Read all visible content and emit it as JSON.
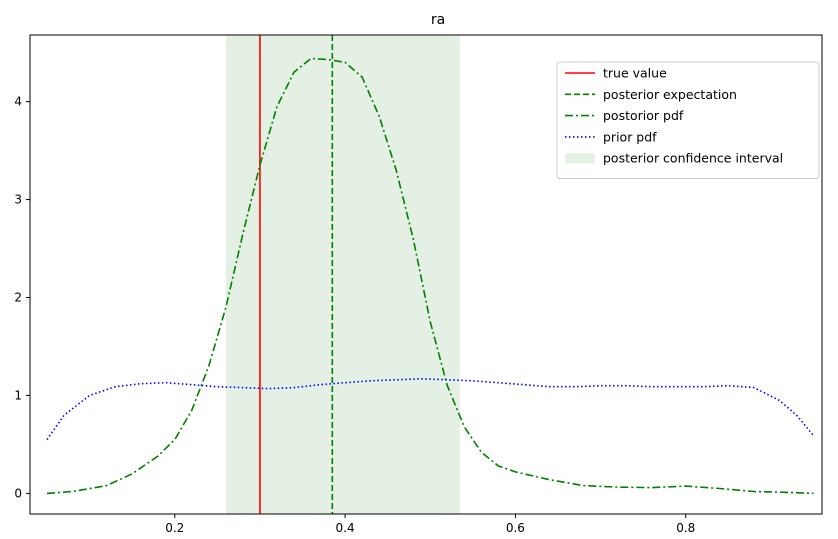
{
  "chart_data": {
    "type": "line",
    "title": "ra",
    "xlabel": "",
    "ylabel": "",
    "xlim": [
      0.03,
      0.96
    ],
    "ylim": [
      -0.21,
      4.68
    ],
    "x_ticks": [
      0.2,
      0.4,
      0.6,
      0.8
    ],
    "y_ticks": [
      0,
      1,
      2,
      3,
      4
    ],
    "x_tick_labels": [
      "0.2",
      "0.4",
      "0.6",
      "0.8"
    ],
    "y_tick_labels": [
      "0",
      "1",
      "2",
      "3",
      "4"
    ],
    "grid": false,
    "legend_position": "upper-right",
    "true_value": 0.3,
    "posterior_expectation": 0.385,
    "confidence_interval": [
      0.26,
      0.535
    ],
    "series": [
      {
        "name": "true value",
        "kind": "vline",
        "color": "#ff0000",
        "style": "solid",
        "x": 0.3
      },
      {
        "name": "posterior expectation",
        "kind": "vline",
        "color": "#008000",
        "style": "dashed",
        "x": 0.385
      },
      {
        "name": "postorior pdf",
        "kind": "line",
        "color": "#008000",
        "style": "dashdot",
        "x": [
          0.05,
          0.08,
          0.12,
          0.15,
          0.18,
          0.2,
          0.22,
          0.24,
          0.26,
          0.28,
          0.3,
          0.32,
          0.34,
          0.36,
          0.38,
          0.4,
          0.42,
          0.44,
          0.46,
          0.48,
          0.5,
          0.52,
          0.54,
          0.56,
          0.58,
          0.6,
          0.64,
          0.68,
          0.72,
          0.76,
          0.8,
          0.84,
          0.88,
          0.92,
          0.95
        ],
        "y": [
          0.0,
          0.02,
          0.08,
          0.2,
          0.38,
          0.55,
          0.85,
          1.3,
          1.9,
          2.65,
          3.35,
          3.95,
          4.3,
          4.44,
          4.43,
          4.4,
          4.25,
          3.85,
          3.3,
          2.6,
          1.75,
          1.1,
          0.68,
          0.42,
          0.28,
          0.22,
          0.14,
          0.08,
          0.065,
          0.06,
          0.075,
          0.05,
          0.02,
          0.01,
          0.0
        ]
      },
      {
        "name": "prior pdf",
        "kind": "line",
        "color": "#0000ff",
        "style": "dotted",
        "x": [
          0.05,
          0.07,
          0.1,
          0.13,
          0.16,
          0.19,
          0.22,
          0.25,
          0.28,
          0.31,
          0.34,
          0.37,
          0.4,
          0.43,
          0.46,
          0.49,
          0.52,
          0.55,
          0.58,
          0.61,
          0.64,
          0.67,
          0.7,
          0.73,
          0.76,
          0.79,
          0.82,
          0.85,
          0.88,
          0.91,
          0.93,
          0.95
        ],
        "y": [
          0.55,
          0.8,
          1.0,
          1.09,
          1.12,
          1.13,
          1.11,
          1.09,
          1.08,
          1.07,
          1.08,
          1.11,
          1.13,
          1.15,
          1.16,
          1.17,
          1.16,
          1.15,
          1.13,
          1.11,
          1.09,
          1.09,
          1.1,
          1.1,
          1.09,
          1.09,
          1.09,
          1.1,
          1.08,
          0.95,
          0.8,
          0.59
        ]
      }
    ],
    "legend": [
      {
        "label": "true value",
        "color": "#ff0000",
        "style": "solid"
      },
      {
        "label": "posterior expectation",
        "color": "#008000",
        "style": "dashed"
      },
      {
        "label": "postorior pdf",
        "color": "#008000",
        "style": "dashdot"
      },
      {
        "label": "prior pdf",
        "color": "#0000ff",
        "style": "dotted"
      },
      {
        "label": "posterior confidence interval",
        "color": "#e3f0e3",
        "style": "patch"
      }
    ]
  }
}
